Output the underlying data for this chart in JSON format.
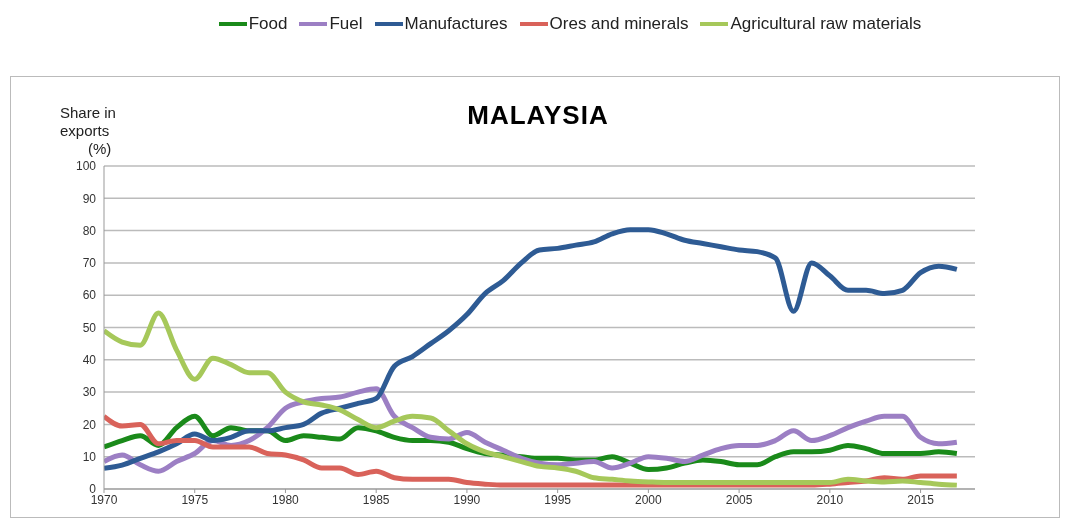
{
  "chart_data": {
    "type": "line",
    "title": "MALAYSIA",
    "ylabel": "Share in exports (%)",
    "x": [
      1970,
      1971,
      1972,
      1973,
      1974,
      1975,
      1976,
      1977,
      1978,
      1979,
      1980,
      1981,
      1982,
      1983,
      1984,
      1985,
      1986,
      1987,
      1988,
      1989,
      1990,
      1991,
      1992,
      1993,
      1994,
      1995,
      1996,
      1997,
      1998,
      1999,
      2000,
      2001,
      2002,
      2003,
      2004,
      2005,
      2006,
      2007,
      2008,
      2009,
      2010,
      2011,
      2012,
      2013,
      2014,
      2015,
      2016,
      2017
    ],
    "series": [
      {
        "name": "Food",
        "color": "#1a8a1a",
        "values": [
          13,
          15,
          16.5,
          13.5,
          19,
          22.5,
          16.5,
          19,
          18,
          18,
          15,
          16.5,
          16,
          15.5,
          19,
          18,
          16,
          15,
          15,
          14.5,
          12.5,
          11,
          10.5,
          10,
          9.5,
          9.5,
          9,
          9,
          10,
          8,
          6,
          6.5,
          8,
          9,
          8.5,
          7.5,
          7.5,
          10,
          11.5,
          11.5,
          12,
          13.5,
          12.5,
          11,
          11,
          11,
          11.5,
          11
        ]
      },
      {
        "name": "Fuel",
        "color": "#9c7fc4",
        "values": [
          8.5,
          10.5,
          7.5,
          5.5,
          8.5,
          11,
          15,
          13.5,
          15,
          19,
          25,
          27,
          28,
          28.5,
          30,
          31,
          22.5,
          19,
          16,
          15.5,
          17.5,
          14.5,
          12,
          9.5,
          8,
          7.5,
          8,
          8.5,
          6.5,
          8,
          10,
          9.5,
          8.5,
          10.5,
          12.5,
          13.5,
          13.5,
          15,
          18,
          15,
          16.5,
          19,
          21,
          22.5,
          22.5,
          16,
          14,
          14.5
        ]
      },
      {
        "name": "Manufactures",
        "color": "#2e5b94",
        "values": [
          6.4,
          7.4,
          9.5,
          11.5,
          14,
          17,
          15,
          16,
          18,
          18,
          19,
          20,
          23.5,
          25,
          26.5,
          28,
          38,
          41,
          45,
          49,
          54,
          60.5,
          64.5,
          70,
          74,
          74.5,
          75.5,
          76.5,
          79,
          80.3,
          80.3,
          79,
          77,
          76,
          75,
          74,
          73.5,
          71.5,
          55,
          70,
          66,
          61.5,
          61.5,
          60.5,
          61.5,
          67,
          69,
          68
        ]
      },
      {
        "name": "Ores and minerals",
        "color": "#d9625a",
        "values": [
          22.5,
          19.5,
          20,
          14,
          15,
          15,
          13,
          13,
          13,
          11,
          10.5,
          9,
          6.5,
          6.5,
          4.5,
          5.5,
          3.5,
          3,
          3,
          3,
          2,
          1.5,
          1.2,
          1.2,
          1.2,
          1.2,
          1.2,
          1.2,
          1.2,
          1.2,
          1.2,
          1.2,
          1.2,
          1.2,
          1.2,
          1.2,
          1.2,
          1.2,
          1.2,
          1.2,
          1.5,
          2,
          2.5,
          3.5,
          3,
          4,
          4,
          4
        ]
      },
      {
        "name": "Agricultural raw materials",
        "color": "#a6c85a",
        "values": [
          49,
          45.5,
          44.5,
          54.5,
          43,
          34,
          40.5,
          38.5,
          36,
          36,
          30,
          27,
          26,
          24.5,
          21.5,
          19,
          21,
          22.5,
          22,
          18,
          14,
          11.5,
          10,
          8.5,
          7,
          6.5,
          5.5,
          3.5,
          3,
          2.5,
          2.2,
          2,
          2,
          2,
          2,
          2,
          2,
          2,
          2,
          2,
          2,
          3,
          2.5,
          2.2,
          2.5,
          2,
          1.5,
          1.2
        ]
      }
    ],
    "xlim": [
      1970,
      2018
    ],
    "xticks": [
      1970,
      1975,
      1980,
      1985,
      1990,
      1995,
      2000,
      2005,
      2010,
      2015
    ],
    "ylim": [
      0,
      100
    ],
    "yticks": [
      0,
      10,
      20,
      30,
      40,
      50,
      60,
      70,
      80,
      90,
      100
    ],
    "grid": "y",
    "legend": "top",
    "marker": "none",
    "line_style": "solid"
  }
}
